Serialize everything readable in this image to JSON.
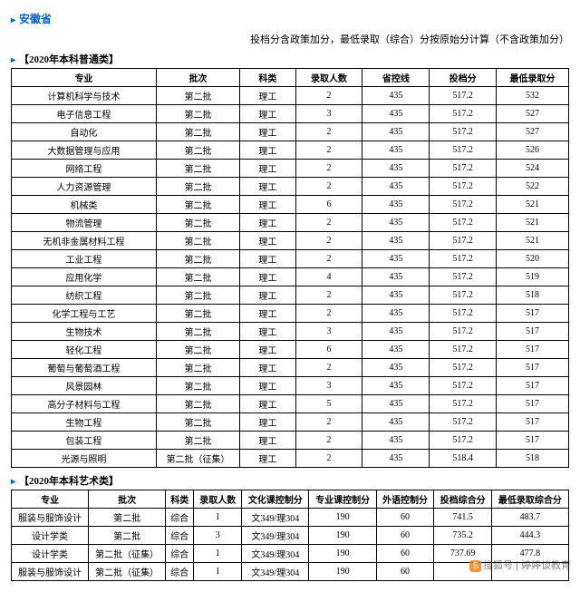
{
  "province": "安徽省",
  "note": "投档分含政策加分，最低录取（综合）分按原始分计算（不含政策加分）",
  "section1_title": "【2020年本科普通类】",
  "table1": {
    "headers": [
      "专业",
      "批次",
      "科类",
      "录取人数",
      "省控线",
      "投档分",
      "最低录取分"
    ],
    "rows": [
      [
        "计算机科学与技术",
        "第二批",
        "理工",
        "2",
        "435",
        "517.2",
        "532"
      ],
      [
        "电子信息工程",
        "第二批",
        "理工",
        "3",
        "435",
        "517.2",
        "527"
      ],
      [
        "自动化",
        "第二批",
        "理工",
        "2",
        "435",
        "517.2",
        "527"
      ],
      [
        "大数据管理与应用",
        "第二批",
        "理工",
        "2",
        "435",
        "517.2",
        "526"
      ],
      [
        "网络工程",
        "第二批",
        "理工",
        "2",
        "435",
        "517.2",
        "524"
      ],
      [
        "人力资源管理",
        "第二批",
        "理工",
        "2",
        "435",
        "517.2",
        "522"
      ],
      [
        "机械类",
        "第二批",
        "理工",
        "6",
        "435",
        "517.2",
        "521"
      ],
      [
        "物流管理",
        "第二批",
        "理工",
        "2",
        "435",
        "517.2",
        "521"
      ],
      [
        "无机非金属材料工程",
        "第二批",
        "理工",
        "2",
        "435",
        "517.2",
        "521"
      ],
      [
        "工业工程",
        "第二批",
        "理工",
        "2",
        "435",
        "517.2",
        "520"
      ],
      [
        "应用化学",
        "第二批",
        "理工",
        "4",
        "435",
        "517.2",
        "519"
      ],
      [
        "纺织工程",
        "第二批",
        "理工",
        "2",
        "435",
        "517.2",
        "518"
      ],
      [
        "化学工程与工艺",
        "第二批",
        "理工",
        "2",
        "435",
        "517.2",
        "517"
      ],
      [
        "生物技术",
        "第二批",
        "理工",
        "3",
        "435",
        "517.2",
        "517"
      ],
      [
        "轻化工程",
        "第二批",
        "理工",
        "6",
        "435",
        "517.2",
        "517"
      ],
      [
        "葡萄与葡萄酒工程",
        "第二批",
        "理工",
        "2",
        "435",
        "517.2",
        "517"
      ],
      [
        "风景园林",
        "第二批",
        "理工",
        "3",
        "435",
        "517.2",
        "517"
      ],
      [
        "高分子材料与工程",
        "第二批",
        "理工",
        "5",
        "435",
        "517.2",
        "517"
      ],
      [
        "生物工程",
        "第二批",
        "理工",
        "2",
        "435",
        "517.2",
        "517"
      ],
      [
        "包装工程",
        "第二批",
        "理工",
        "2",
        "435",
        "517.2",
        "517"
      ],
      [
        "光源与照明",
        "第二批（征集）",
        "理工",
        "2",
        "435",
        "518.4",
        "518"
      ]
    ]
  },
  "section2_title": "【2020年本科艺术类】",
  "table2": {
    "headers": [
      "专业",
      "批次",
      "科类",
      "录取人数",
      "文化课控制分",
      "专业课控制分",
      "外语控制分",
      "投档综合分",
      "最低录取综合分"
    ],
    "rows": [
      [
        "服装与服饰设计",
        "第二批",
        "综合",
        "1",
        "文349/理304",
        "190",
        "60",
        "741.5",
        "483.7"
      ],
      [
        "设计学类",
        "第二批",
        "综合",
        "3",
        "文349/理304",
        "190",
        "60",
        "735.2",
        "444.3"
      ],
      [
        "设计学类",
        "第二批（征集）",
        "综合",
        "1",
        "文349/理304",
        "190",
        "60",
        "737.69",
        "477.8"
      ],
      [
        "服装与服饰设计",
        "第二批（征集）",
        "综合",
        "1",
        "文349/理304",
        "190",
        "60",
        "",
        ""
      ]
    ]
  },
  "watermark": "搜狐号 | 婷婷谈教育"
}
